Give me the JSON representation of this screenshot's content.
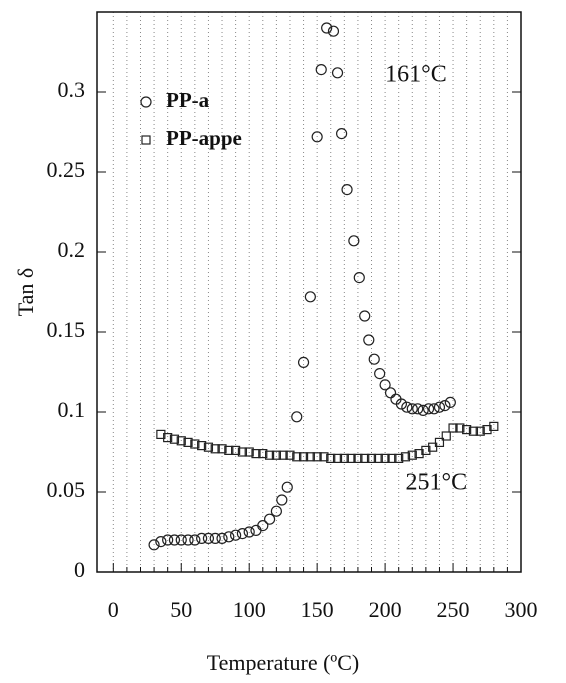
{
  "chart_data": {
    "type": "scatter",
    "xlabel": "Temperature (ºC)",
    "ylabel": "Tan δ",
    "xlim": [
      -12,
      300
    ],
    "ylim": [
      0,
      0.35
    ],
    "xticks": [
      0,
      50,
      100,
      150,
      200,
      250,
      300
    ],
    "yticks": [
      0,
      0.05,
      0.1,
      0.15,
      0.2,
      0.25,
      0.3
    ],
    "x_minor_ticks": [
      10,
      20,
      30,
      40,
      60,
      70,
      80,
      90,
      110,
      120,
      130,
      140,
      160,
      170,
      180,
      190,
      210,
      220,
      230,
      240,
      260,
      270,
      280,
      290
    ],
    "grid": "dotted",
    "legend": "upper left",
    "annotations": [
      {
        "text": "161°C",
        "x": 200,
        "y": 0.31
      },
      {
        "text": "251°C",
        "x": 215,
        "y": 0.055
      }
    ],
    "series": [
      {
        "name": "PP-a",
        "marker": "circle",
        "color": "#222",
        "x": [
          30,
          35,
          40,
          45,
          50,
          55,
          60,
          65,
          70,
          75,
          80,
          85,
          90,
          95,
          100,
          105,
          110,
          115,
          120,
          124,
          128,
          135,
          140,
          145,
          150,
          153,
          157,
          162,
          165,
          168,
          172,
          177,
          181,
          185,
          188,
          192,
          196,
          200,
          204,
          208,
          212,
          216,
          220,
          224,
          228,
          232,
          236,
          240,
          244,
          248
        ],
        "values": [
          0.017,
          0.019,
          0.02,
          0.02,
          0.02,
          0.02,
          0.02,
          0.021,
          0.021,
          0.021,
          0.021,
          0.022,
          0.023,
          0.024,
          0.025,
          0.026,
          0.029,
          0.033,
          0.038,
          0.045,
          0.053,
          0.097,
          0.131,
          0.172,
          0.272,
          0.314,
          0.34,
          0.338,
          0.312,
          0.274,
          0.239,
          0.207,
          0.184,
          0.16,
          0.145,
          0.133,
          0.124,
          0.117,
          0.112,
          0.108,
          0.105,
          0.103,
          0.102,
          0.102,
          0.101,
          0.102,
          0.102,
          0.103,
          0.104,
          0.106
        ]
      },
      {
        "name": "PP-appe",
        "marker": "square",
        "color": "#222",
        "x": [
          35,
          40,
          45,
          50,
          55,
          60,
          65,
          70,
          75,
          80,
          85,
          90,
          95,
          100,
          105,
          110,
          115,
          120,
          125,
          130,
          135,
          140,
          145,
          150,
          155,
          160,
          165,
          170,
          175,
          180,
          185,
          190,
          195,
          200,
          205,
          210,
          215,
          220,
          225,
          230,
          235,
          240,
          245,
          250,
          255,
          260,
          265,
          270,
          275,
          280
        ],
        "values": [
          0.086,
          0.084,
          0.083,
          0.082,
          0.081,
          0.08,
          0.079,
          0.078,
          0.077,
          0.077,
          0.076,
          0.076,
          0.075,
          0.075,
          0.074,
          0.074,
          0.073,
          0.073,
          0.073,
          0.073,
          0.072,
          0.072,
          0.072,
          0.072,
          0.072,
          0.071,
          0.071,
          0.071,
          0.071,
          0.071,
          0.071,
          0.071,
          0.071,
          0.071,
          0.071,
          0.071,
          0.072,
          0.073,
          0.074,
          0.076,
          0.078,
          0.081,
          0.085,
          0.09,
          0.09,
          0.089,
          0.088,
          0.088,
          0.089,
          0.091
        ]
      }
    ]
  }
}
